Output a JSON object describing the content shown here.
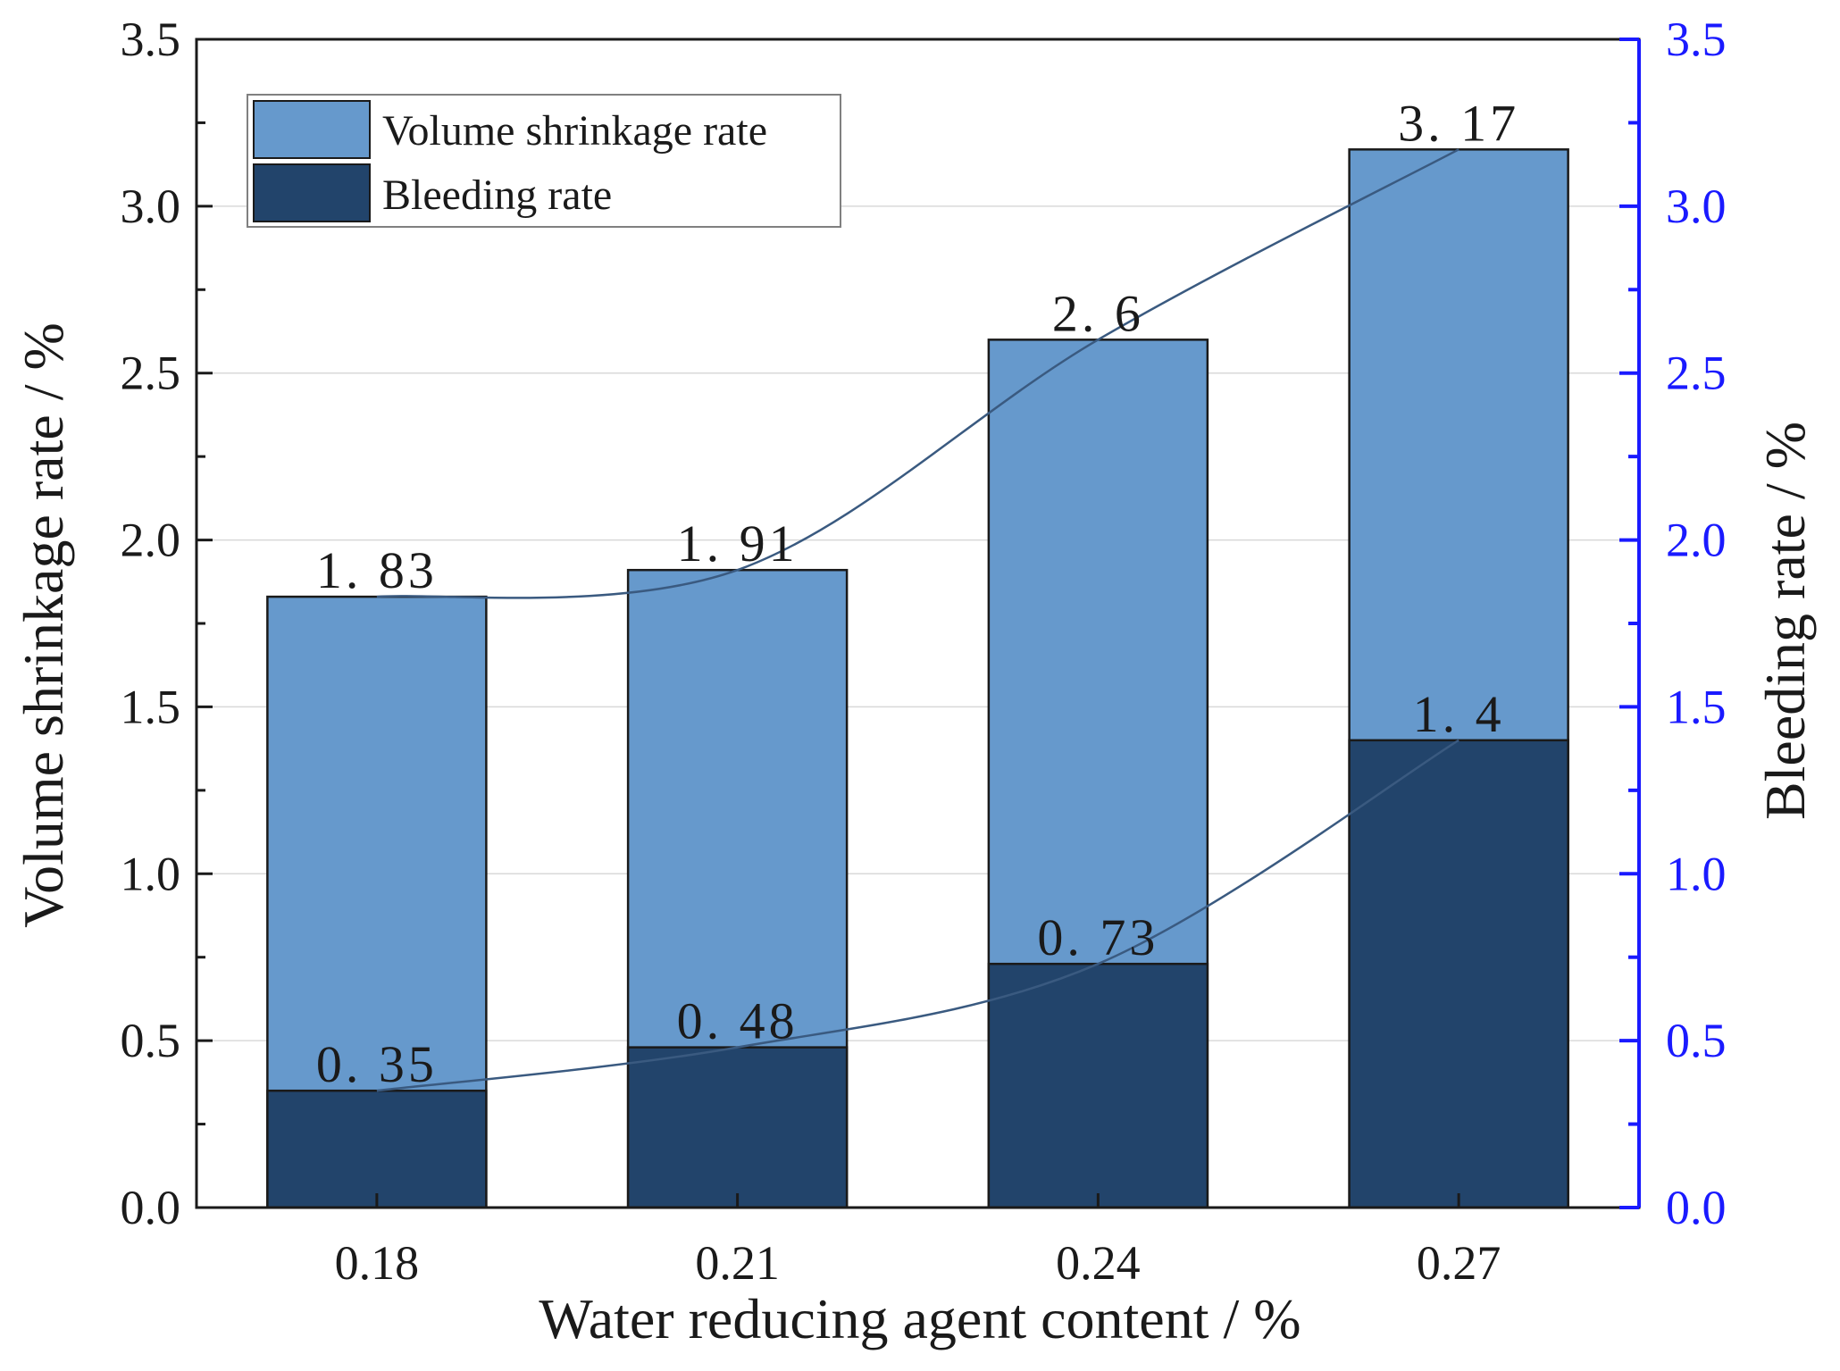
{
  "chart_data": {
    "type": "bar",
    "categories": [
      "0.18",
      "0.21",
      "0.24",
      "0.27"
    ],
    "series": [
      {
        "name": "Volume shrinkage rate",
        "axis": "left",
        "values": [
          1.83,
          1.91,
          2.6,
          3.17
        ],
        "labels": [
          "1. 83",
          "1. 91",
          "2. 6",
          "3. 17"
        ],
        "color": "#6699cc"
      },
      {
        "name": "Bleeding rate",
        "axis": "right",
        "values": [
          0.35,
          0.48,
          0.73,
          1.4
        ],
        "labels": [
          "0. 35",
          "0. 48",
          "0. 73",
          "1. 4"
        ],
        "color": "#22446b"
      }
    ],
    "trend_lines": true,
    "xlabel": "Water reducing agent content / %",
    "ylabel": "Volume shrinkage rate / %",
    "y2label": "Bleeding rate / %",
    "ylim": [
      0,
      3.5
    ],
    "y2lim": [
      0,
      3.5
    ],
    "yticks": [
      "0.0",
      "0.5",
      "1.0",
      "1.5",
      "2.0",
      "2.5",
      "3.0",
      "3.5"
    ],
    "y2ticks": [
      "0.0",
      "0.5",
      "1.0",
      "1.5",
      "2.0",
      "2.5",
      "3.0",
      "3.5"
    ],
    "grid": true,
    "legend_position": "top-left",
    "colors": {
      "axis": "#1a1a1a",
      "right_axis": "#1a1aff",
      "grid": "#d9d9d9",
      "trend": "#3a5a80"
    }
  }
}
